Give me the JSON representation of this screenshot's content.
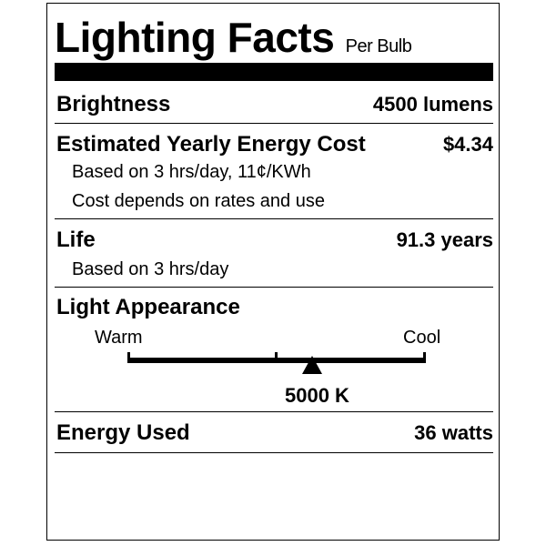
{
  "header": {
    "title": "Lighting Facts",
    "subtitle": "Per Bulb"
  },
  "rows": {
    "brightness": {
      "label": "Brightness",
      "value": "4500 lumens"
    },
    "cost": {
      "label": "Estimated Yearly Energy Cost",
      "value": "$4.34",
      "note1": "Based on 3 hrs/day, 11¢/KWh",
      "note2": "Cost depends on rates and use"
    },
    "life": {
      "label": "Life",
      "value": "91.3 years",
      "note1": "Based on 3 hrs/day"
    },
    "appearance": {
      "label": "Light Appearance",
      "warm": "Warm",
      "cool": "Cool",
      "value": "5000 K",
      "marker_fraction": 0.62
    },
    "energy": {
      "label": "Energy Used",
      "value": "36 watts"
    }
  }
}
